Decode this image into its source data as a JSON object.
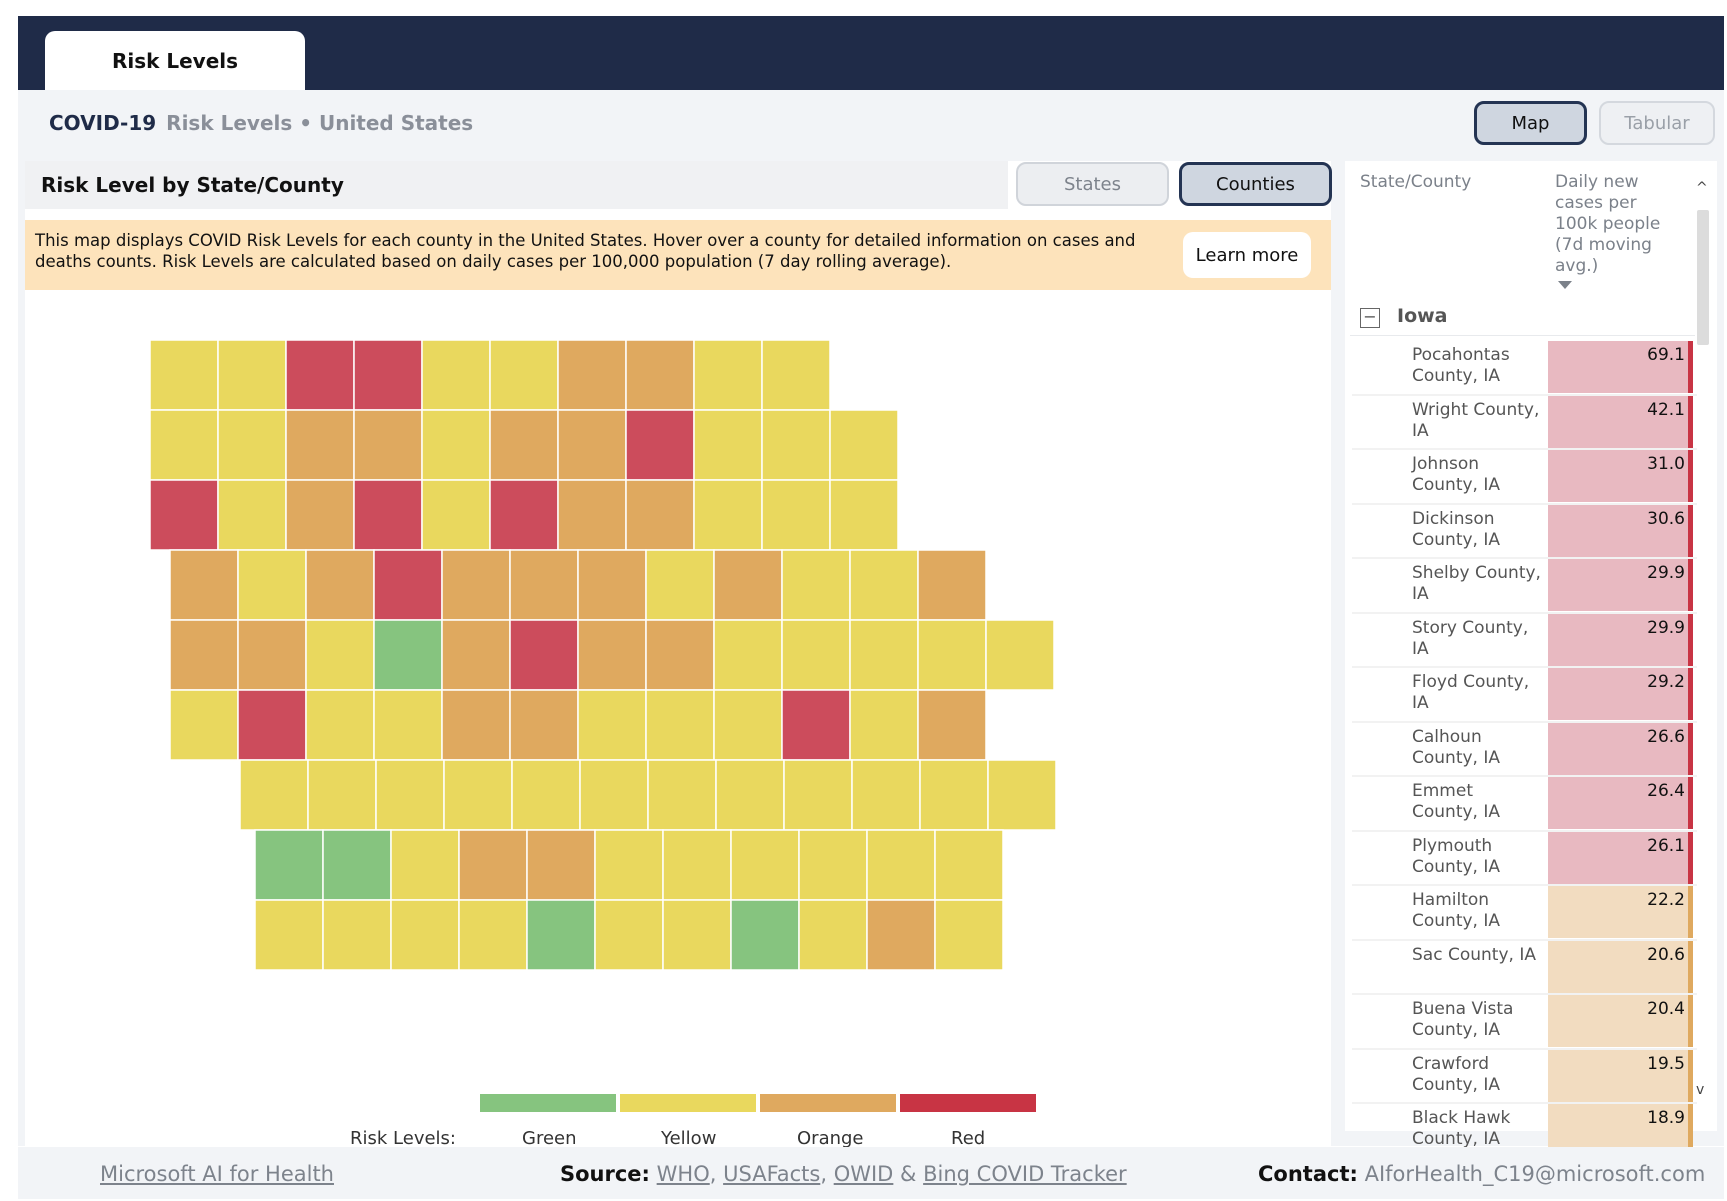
{
  "app": {
    "tab_label": "Risk Levels",
    "breadcrumb_main": "COVID-19",
    "breadcrumb_sub": "Risk Levels • United States"
  },
  "view_toggle": {
    "map": "Map",
    "tabular": "Tabular",
    "selected": "Map"
  },
  "map_panel": {
    "title": "Risk Level by State/County",
    "level_toggle": {
      "states": "States",
      "counties": "Counties",
      "selected": "Counties"
    },
    "info_text": "This map displays COVID Risk Levels for each county in the United States. Hover over a county for detailed information on cases and deaths counts. Risk Levels are calculated based on daily cases per 100,000 population (7 day rolling average).",
    "learn_more": "Learn more"
  },
  "legend": {
    "title": "Risk Levels:",
    "items": [
      {
        "label": "Green",
        "color": "#86c47f"
      },
      {
        "label": "Yellow",
        "color": "#e9d85e"
      },
      {
        "label": "Orange",
        "color": "#dfa95f"
      },
      {
        "label": "Red",
        "color": "#c83444"
      }
    ]
  },
  "risk_colors": {
    "green": "#86c47f",
    "yellow": "#e9d85e",
    "orange": "#dfa95f",
    "red": "#cc4c5c"
  },
  "table": {
    "col_name": "State/County",
    "col_value": "Daily new cases per 100k people (7d moving avg.)",
    "group": "Iowa",
    "rows": [
      {
        "name": "Pocahontas County, IA",
        "value": "69.1",
        "level": "red"
      },
      {
        "name": "Wright County, IA",
        "value": "42.1",
        "level": "red"
      },
      {
        "name": "Johnson County, IA",
        "value": "31.0",
        "level": "red"
      },
      {
        "name": "Dickinson County, IA",
        "value": "30.6",
        "level": "red"
      },
      {
        "name": "Shelby County, IA",
        "value": "29.9",
        "level": "red"
      },
      {
        "name": "Story County, IA",
        "value": "29.9",
        "level": "red"
      },
      {
        "name": "Floyd County, IA",
        "value": "29.2",
        "level": "red"
      },
      {
        "name": "Calhoun County, IA",
        "value": "26.6",
        "level": "red"
      },
      {
        "name": "Emmet County, IA",
        "value": "26.4",
        "level": "red"
      },
      {
        "name": "Plymouth County, IA",
        "value": "26.1",
        "level": "red"
      },
      {
        "name": "Hamilton County, IA",
        "value": "22.2",
        "level": "orange"
      },
      {
        "name": "Sac County, IA",
        "value": "20.6",
        "level": "orange"
      },
      {
        "name": "Buena Vista County, IA",
        "value": "20.4",
        "level": "orange"
      },
      {
        "name": "Crawford County, IA",
        "value": "19.5",
        "level": "orange"
      },
      {
        "name": "Black Hawk County, IA",
        "value": "18.9",
        "level": "orange"
      }
    ]
  },
  "footer": {
    "ms_link": "Microsoft AI for Health",
    "source_label": "Source:",
    "source_links": [
      "WHO",
      "USAFacts",
      "OWID",
      "Bing COVID Tracker"
    ],
    "contact_label": "Contact:",
    "contact_email": "AIforHealth_C19@microsoft.com"
  }
}
